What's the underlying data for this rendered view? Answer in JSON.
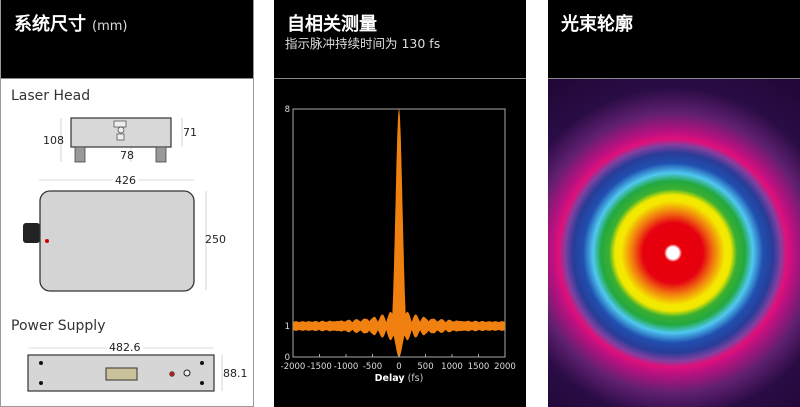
{
  "dimensions": {
    "title": "系统尺寸",
    "unit": "(mm)",
    "laser_head": {
      "label": "Laser Head",
      "height_total": "108",
      "body_height": "71",
      "leg_offset": "78",
      "width": "426",
      "depth": "250"
    },
    "power_supply": {
      "label": "Power Supply",
      "width": "482.6",
      "height": "88.1"
    }
  },
  "autocorrelation": {
    "title": "自相关测量",
    "subtitle": "指示脉冲持续时间为 130 fs",
    "chart_data": {
      "type": "area",
      "xlabel_bold": "Delay",
      "xlabel_unit": "(fs)",
      "xlim": [
        -2000,
        2000
      ],
      "ylim": [
        0,
        8
      ],
      "x_ticks": [
        "-2000",
        "-1500",
        "-1000",
        "-500",
        "0",
        "500",
        "1000",
        "1500",
        "2000"
      ],
      "y_ticks": [
        "0",
        "1",
        "8"
      ],
      "peak": {
        "x": 0,
        "y": 8
      },
      "baseline": 1,
      "pulse_duration_fs": 130,
      "color": "#f08010",
      "grid": false
    }
  },
  "beam": {
    "title": "光束轮廓"
  }
}
